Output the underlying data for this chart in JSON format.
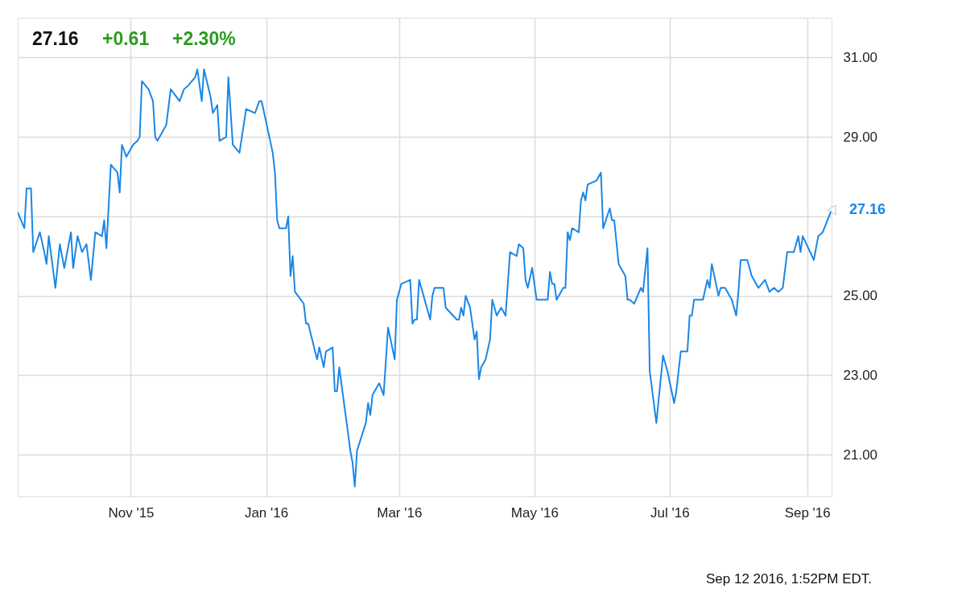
{
  "chart_data": {
    "type": "line",
    "annotations": [
      "27.16",
      "+0.61",
      "+2.30%",
      "Sep 12 2016, 1:52PM EDT.",
      {
        "text": "27.16",
        "x": "2016-09-12",
        "y": 27.16
      }
    ],
    "x": [
      "2015-09-11",
      "2015-09-14",
      "2015-09-15",
      "2015-09-17",
      "2015-09-18",
      "2015-09-21",
      "2015-09-23",
      "2015-09-24",
      "2015-09-25",
      "2015-09-28",
      "2015-09-30",
      "2015-10-02",
      "2015-10-05",
      "2015-10-06",
      "2015-10-08",
      "2015-10-10",
      "2015-10-12",
      "2015-10-14",
      "2015-10-16",
      "2015-10-19",
      "2015-10-20",
      "2015-10-21",
      "2015-10-23",
      "2015-10-26",
      "2015-10-27",
      "2015-10-28",
      "2015-10-30",
      "2015-11-02",
      "2015-11-04",
      "2015-11-05",
      "2015-11-06",
      "2015-11-09",
      "2015-11-11",
      "2015-11-12",
      "2015-11-13",
      "2015-11-17",
      "2015-11-19",
      "2015-11-23",
      "2015-11-25",
      "2015-11-27",
      "2015-11-30",
      "2015-12-01",
      "2015-12-03",
      "2015-12-04",
      "2015-12-07",
      "2015-12-08",
      "2015-12-10",
      "2015-12-11",
      "2015-12-14",
      "2015-12-15",
      "2015-12-17",
      "2015-12-20",
      "2015-12-23",
      "2015-12-27",
      "2015-12-29",
      "2015-12-30",
      "2016-01-04",
      "2016-01-05",
      "2016-01-06",
      "2016-01-07",
      "2016-01-10",
      "2016-01-11",
      "2016-01-12",
      "2016-01-13",
      "2016-01-14",
      "2016-01-18",
      "2016-01-19",
      "2016-01-20",
      "2016-01-24",
      "2016-01-25",
      "2016-01-27",
      "2016-01-28",
      "2016-01-31",
      "2016-02-01",
      "2016-02-02",
      "2016-02-03",
      "2016-02-08",
      "2016-02-09",
      "2016-02-10",
      "2016-02-11",
      "2016-02-15",
      "2016-02-16",
      "2016-02-17",
      "2016-02-18",
      "2016-02-21",
      "2016-02-23",
      "2016-02-25",
      "2016-02-28",
      "2016-02-29",
      "2016-03-02",
      "2016-03-06",
      "2016-03-07",
      "2016-03-08",
      "2016-03-09",
      "2016-03-10",
      "2016-03-13",
      "2016-03-15",
      "2016-03-16",
      "2016-03-17",
      "2016-03-20",
      "2016-03-21",
      "2016-03-22",
      "2016-03-27",
      "2016-03-28",
      "2016-03-29",
      "2016-03-30",
      "2016-03-31",
      "2016-04-02",
      "2016-04-04",
      "2016-04-05",
      "2016-04-06",
      "2016-04-07",
      "2016-04-09",
      "2016-04-11",
      "2016-04-12",
      "2016-04-14",
      "2016-04-16",
      "2016-04-18",
      "2016-04-19",
      "2016-04-20",
      "2016-04-23",
      "2016-04-24",
      "2016-04-26",
      "2016-04-27",
      "2016-04-28",
      "2016-04-30",
      "2016-05-02",
      "2016-05-03",
      "2016-05-07",
      "2016-05-08",
      "2016-05-09",
      "2016-05-10",
      "2016-05-11",
      "2016-05-13",
      "2016-05-14",
      "2016-05-15",
      "2016-05-16",
      "2016-05-17",
      "2016-05-18",
      "2016-05-21",
      "2016-05-22",
      "2016-05-23",
      "2016-05-24",
      "2016-05-25",
      "2016-05-29",
      "2016-05-31",
      "2016-06-01",
      "2016-06-04",
      "2016-06-05",
      "2016-06-06",
      "2016-06-08",
      "2016-06-11",
      "2016-06-12",
      "2016-06-13",
      "2016-06-15",
      "2016-06-18",
      "2016-06-19",
      "2016-06-21",
      "2016-06-22",
      "2016-06-25",
      "2016-06-28",
      "2016-06-30",
      "2016-07-03",
      "2016-07-04",
      "2016-07-06",
      "2016-07-09",
      "2016-07-10",
      "2016-07-11",
      "2016-07-12",
      "2016-07-15",
      "2016-07-16",
      "2016-07-18",
      "2016-07-19",
      "2016-07-20",
      "2016-07-23",
      "2016-07-24",
      "2016-07-26",
      "2016-07-29",
      "2016-07-31",
      "2016-08-01",
      "2016-08-02",
      "2016-08-05",
      "2016-08-07",
      "2016-08-08",
      "2016-08-10",
      "2016-08-13",
      "2016-08-15",
      "2016-08-17",
      "2016-08-19",
      "2016-08-21",
      "2016-08-23",
      "2016-08-26",
      "2016-08-28",
      "2016-08-29",
      "2016-08-30",
      "2016-09-04",
      "2016-09-06",
      "2016-09-08",
      "2016-09-12"
    ],
    "series": [
      {
        "color": "#1a87e6",
        "values": [
          27.1,
          26.7,
          27.7,
          27.7,
          26.1,
          26.6,
          26.1,
          25.8,
          26.5,
          25.2,
          26.3,
          25.7,
          26.6,
          25.7,
          26.5,
          26.1,
          26.3,
          25.4,
          26.6,
          26.5,
          26.9,
          26.2,
          28.3,
          28.1,
          27.6,
          28.8,
          28.5,
          28.8,
          28.9,
          29.0,
          30.4,
          30.2,
          29.9,
          29.0,
          28.9,
          29.3,
          30.2,
          29.9,
          30.2,
          30.3,
          30.5,
          30.7,
          29.9,
          30.7,
          30.0,
          29.6,
          29.8,
          28.9,
          29.0,
          30.5,
          28.8,
          28.6,
          29.7,
          29.6,
          29.9,
          29.9,
          28.6,
          28.1,
          26.9,
          26.7,
          26.7,
          27.0,
          25.5,
          26.0,
          25.1,
          24.8,
          24.3,
          24.3,
          23.4,
          23.7,
          23.2,
          23.6,
          23.7,
          22.6,
          22.6,
          23.2,
          21.1,
          20.8,
          20.2,
          21.1,
          21.8,
          22.3,
          22.0,
          22.5,
          22.8,
          22.5,
          24.2,
          23.4,
          24.9,
          25.3,
          25.4,
          24.3,
          24.4,
          24.4,
          25.4,
          24.8,
          24.4,
          25.0,
          25.2,
          25.2,
          25.2,
          24.7,
          24.4,
          24.4,
          24.7,
          24.5,
          25.0,
          24.7,
          23.9,
          24.1,
          22.9,
          23.2,
          23.4,
          23.9,
          24.9,
          24.5,
          24.7,
          24.5,
          25.3,
          26.1,
          26.0,
          26.3,
          26.2,
          25.4,
          25.2,
          25.7,
          24.9,
          24.9,
          24.9,
          25.6,
          25.3,
          25.3,
          24.9,
          25.1,
          25.2,
          25.2,
          26.6,
          26.4,
          26.7,
          26.6,
          27.4,
          27.6,
          27.4,
          27.8,
          27.9,
          28.1,
          26.7,
          27.2,
          26.9,
          26.9,
          25.8,
          25.5,
          24.9,
          24.9,
          24.8,
          25.2,
          25.1,
          26.2,
          23.1,
          21.8,
          23.5,
          23.1,
          22.3,
          22.6,
          23.6,
          23.6,
          24.5,
          24.5,
          24.9,
          24.9,
          24.9,
          25.4,
          25.2,
          25.8,
          25.0,
          25.2,
          25.2,
          24.9,
          24.5,
          25.1,
          25.9,
          25.9,
          25.5,
          25.4,
          25.2,
          25.4,
          25.1,
          25.2,
          25.1,
          25.2,
          26.1,
          26.1,
          26.5,
          26.1,
          26.5,
          25.9,
          26.5,
          26.6,
          27.16
        ]
      }
    ],
    "xlim": [
      "2015-09-11",
      "2016-09-12"
    ],
    "xticks": [
      {
        "value": "2015-11-01",
        "label": "Nov '15"
      },
      {
        "value": "2016-01-01",
        "label": "Jan '16"
      },
      {
        "value": "2016-03-01",
        "label": "Mar '16"
      },
      {
        "value": "2016-05-01",
        "label": "May '16"
      },
      {
        "value": "2016-07-01",
        "label": "Jul '16"
      },
      {
        "value": "2016-09-01",
        "label": "Sep '16"
      }
    ],
    "ylim": [
      19.95,
      32.0
    ],
    "yticks": [
      {
        "value": 21,
        "label": "21.00"
      },
      {
        "value": 23,
        "label": "23.00"
      },
      {
        "value": 25,
        "label": "25.00"
      },
      {
        "value": 27,
        "label": null
      },
      {
        "value": 29,
        "label": "29.00"
      },
      {
        "value": 31,
        "label": "31.00"
      }
    ],
    "grid": true,
    "marker": "none",
    "line_style": "solid"
  }
}
